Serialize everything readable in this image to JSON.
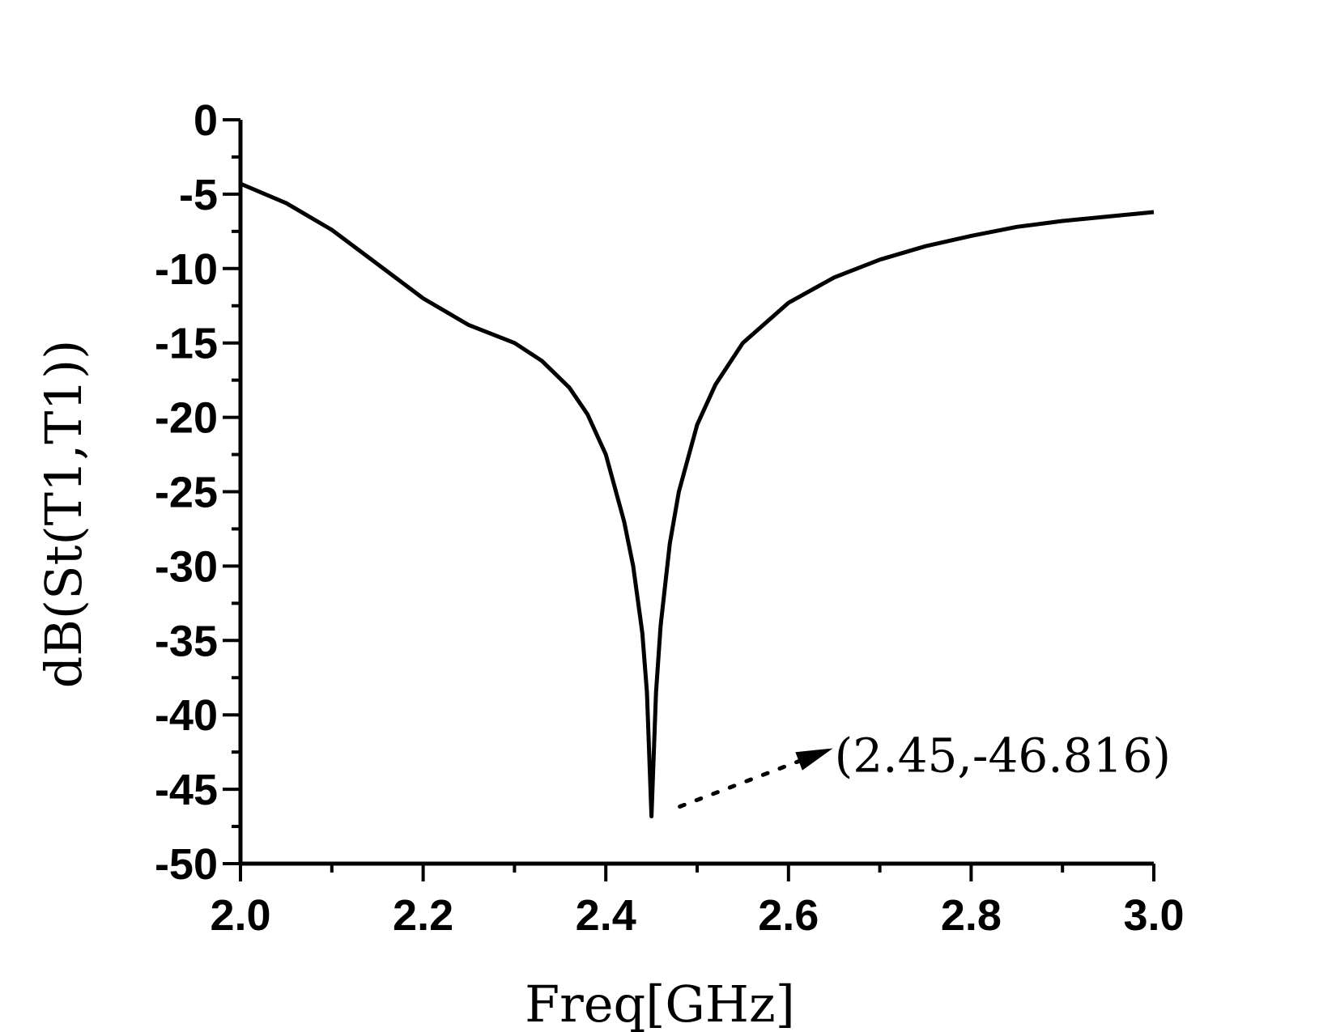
{
  "chart_data": {
    "type": "line",
    "xlabel": "Freq[GHz]",
    "ylabel": "dB(St(T1,T1))",
    "xlim": [
      2.0,
      3.0
    ],
    "ylim": [
      -50,
      0
    ],
    "x_ticks": [
      "2.0",
      "2.2",
      "2.4",
      "2.6",
      "2.8",
      "3.0"
    ],
    "y_ticks": [
      "0",
      "-5",
      "-10",
      "-15",
      "-20",
      "-25",
      "-30",
      "-35",
      "-40",
      "-45",
      "-50"
    ],
    "grid": false,
    "series": [
      {
        "color": "#000000",
        "x": [
          2.0,
          2.05,
          2.1,
          2.15,
          2.2,
          2.25,
          2.3,
          2.33,
          2.36,
          2.38,
          2.4,
          2.42,
          2.43,
          2.44,
          2.445,
          2.45,
          2.455,
          2.46,
          2.47,
          2.48,
          2.5,
          2.52,
          2.55,
          2.6,
          2.65,
          2.7,
          2.75,
          2.8,
          2.85,
          2.9,
          2.95,
          3.0
        ],
        "y": [
          -4.3,
          -5.6,
          -7.4,
          -9.7,
          -12.0,
          -13.8,
          -15.0,
          -16.2,
          -18.0,
          -19.8,
          -22.5,
          -27.0,
          -30.0,
          -34.5,
          -38.5,
          -46.816,
          -38.5,
          -34.0,
          -28.5,
          -25.0,
          -20.5,
          -17.8,
          -15.0,
          -12.3,
          -10.6,
          -9.4,
          -8.5,
          -7.8,
          -7.2,
          -6.8,
          -6.5,
          -6.2
        ]
      }
    ],
    "annotation": {
      "text": "(2.45,-46.816)",
      "x": 2.45,
      "y": -46.816
    }
  }
}
